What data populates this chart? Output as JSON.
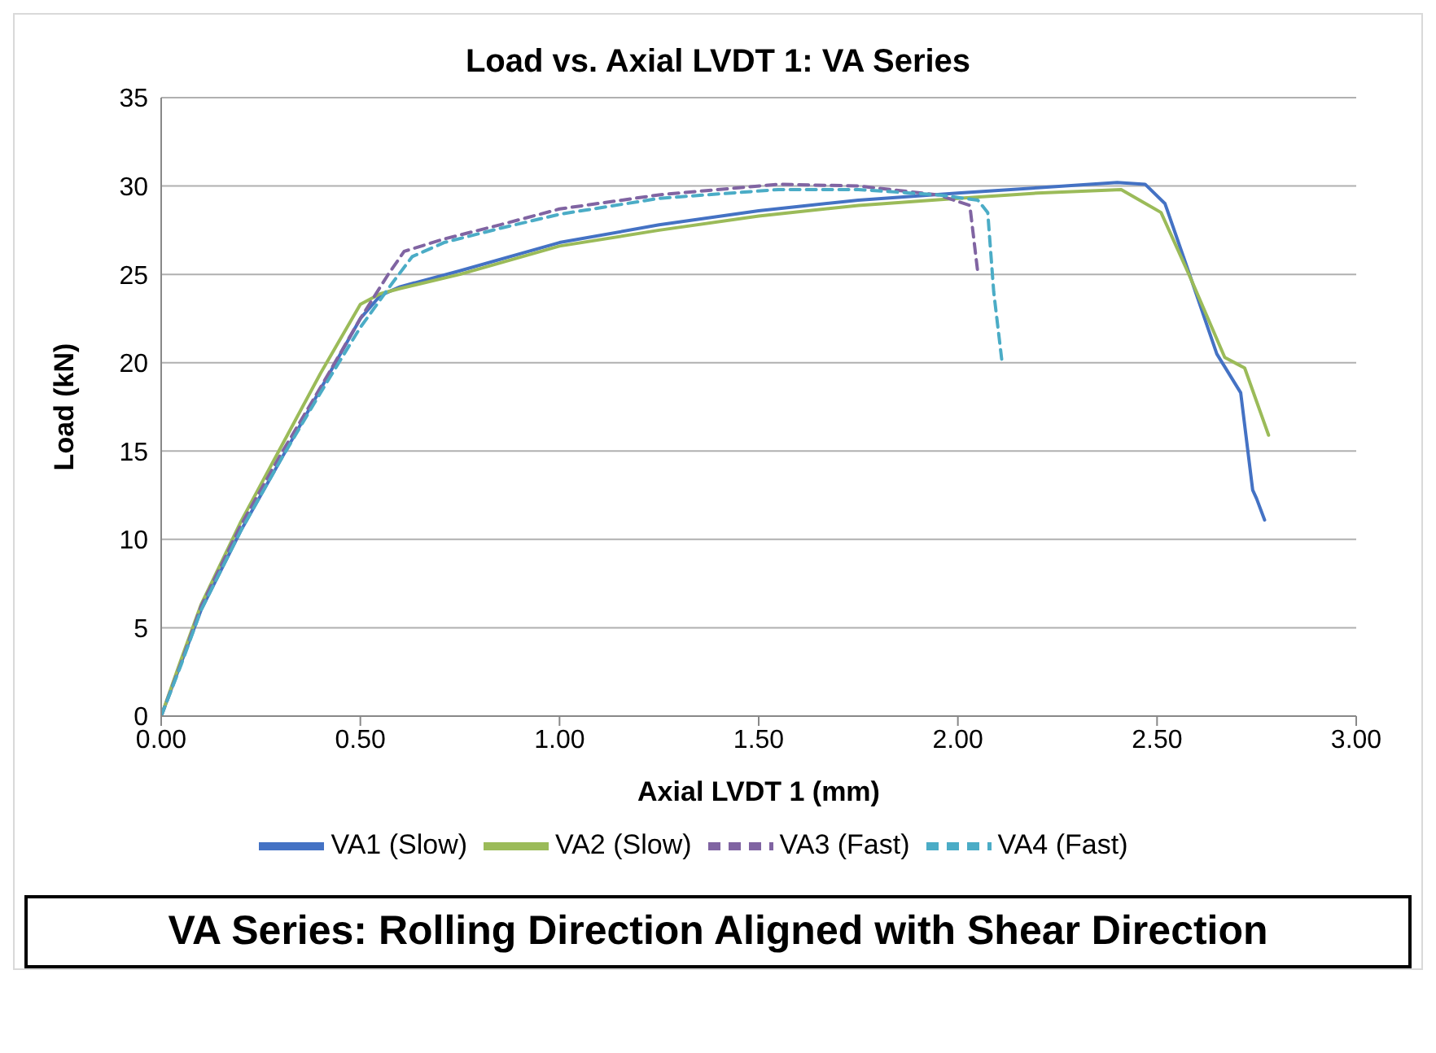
{
  "chart_data": {
    "type": "line",
    "title": "Load vs. Axial LVDT 1: VA Series",
    "xlabel": "Axial LVDT 1 (mm)",
    "ylabel": "Load (kN)",
    "annotations": [
      "VA Series: Rolling Direction Aligned with Shear Direction"
    ],
    "xlim": [
      0,
      3
    ],
    "xticks": [
      {
        "value": 0,
        "label": "0.00"
      },
      {
        "value": 0.5,
        "label": "0.50"
      },
      {
        "value": 1,
        "label": "1.00"
      },
      {
        "value": 1.5,
        "label": "1.50"
      },
      {
        "value": 2,
        "label": "2.00"
      },
      {
        "value": 2.5,
        "label": "2.50"
      },
      {
        "value": 3,
        "label": "3.00"
      }
    ],
    "ylim": [
      0,
      35
    ],
    "yticks": [
      0,
      5,
      10,
      15,
      20,
      25,
      30,
      35
    ],
    "grid": "y",
    "legend": "bottom",
    "marker": "none",
    "series": [
      {
        "name": "VA1 (Slow)",
        "color": "#4472c4",
        "line_style": "solid",
        "x": [
          0,
          0.05,
          0.1,
          0.2,
          0.3,
          0.4,
          0.5,
          0.55,
          0.6,
          0.75,
          1.0,
          1.25,
          1.5,
          1.75,
          2.0,
          2.2,
          2.4,
          2.47,
          2.52,
          2.58,
          2.65,
          2.71,
          2.74,
          2.75,
          2.77
        ],
        "values": [
          0,
          3,
          6,
          10.5,
          14.5,
          18.5,
          22.5,
          23.8,
          24.3,
          25.2,
          26.8,
          27.8,
          28.6,
          29.2,
          29.6,
          29.9,
          30.2,
          30.1,
          29,
          25.1,
          20.5,
          18.3,
          12.8,
          12.3,
          11.1
        ]
      },
      {
        "name": "VA2 (Slow)",
        "color": "#9bbb59",
        "line_style": "solid",
        "x": [
          0,
          0.05,
          0.1,
          0.2,
          0.3,
          0.4,
          0.5,
          0.55,
          0.6,
          0.75,
          1.0,
          1.25,
          1.5,
          1.75,
          2.0,
          2.2,
          2.41,
          2.51,
          2.58,
          2.67,
          2.72,
          2.75,
          2.78
        ],
        "values": [
          0,
          3.2,
          6.3,
          11,
          15.2,
          19.4,
          23.3,
          23.9,
          24.2,
          25,
          26.6,
          27.5,
          28.3,
          28.9,
          29.3,
          29.6,
          29.8,
          28.5,
          25,
          20.3,
          19.7,
          17.8,
          15.9
        ]
      },
      {
        "name": "VA3 (Fast)",
        "color": "#8064a2",
        "line_style": "dashed",
        "x": [
          0,
          0.05,
          0.1,
          0.2,
          0.3,
          0.4,
          0.5,
          0.57,
          0.61,
          0.71,
          0.85,
          1.0,
          1.25,
          1.55,
          1.75,
          1.95,
          2.03,
          2.05
        ],
        "values": [
          0,
          3,
          6.2,
          10.8,
          14.8,
          18.6,
          22.5,
          25,
          26.3,
          27,
          27.8,
          28.7,
          29.5,
          30.1,
          30,
          29.5,
          28.9,
          25.1
        ]
      },
      {
        "name": "VA4 (Fast)",
        "color": "#4bacc6",
        "line_style": "dashed",
        "x": [
          0,
          0.05,
          0.1,
          0.2,
          0.3,
          0.4,
          0.5,
          0.58,
          0.63,
          0.71,
          0.85,
          1.0,
          1.25,
          1.55,
          1.75,
          1.95,
          2.05,
          2.075,
          2.09,
          2.11
        ],
        "values": [
          0,
          2.9,
          6,
          10.5,
          14.5,
          18.3,
          22,
          24.5,
          26,
          26.8,
          27.6,
          28.4,
          29.3,
          29.8,
          29.8,
          29.5,
          29.2,
          28.5,
          24,
          20.2
        ]
      }
    ]
  }
}
